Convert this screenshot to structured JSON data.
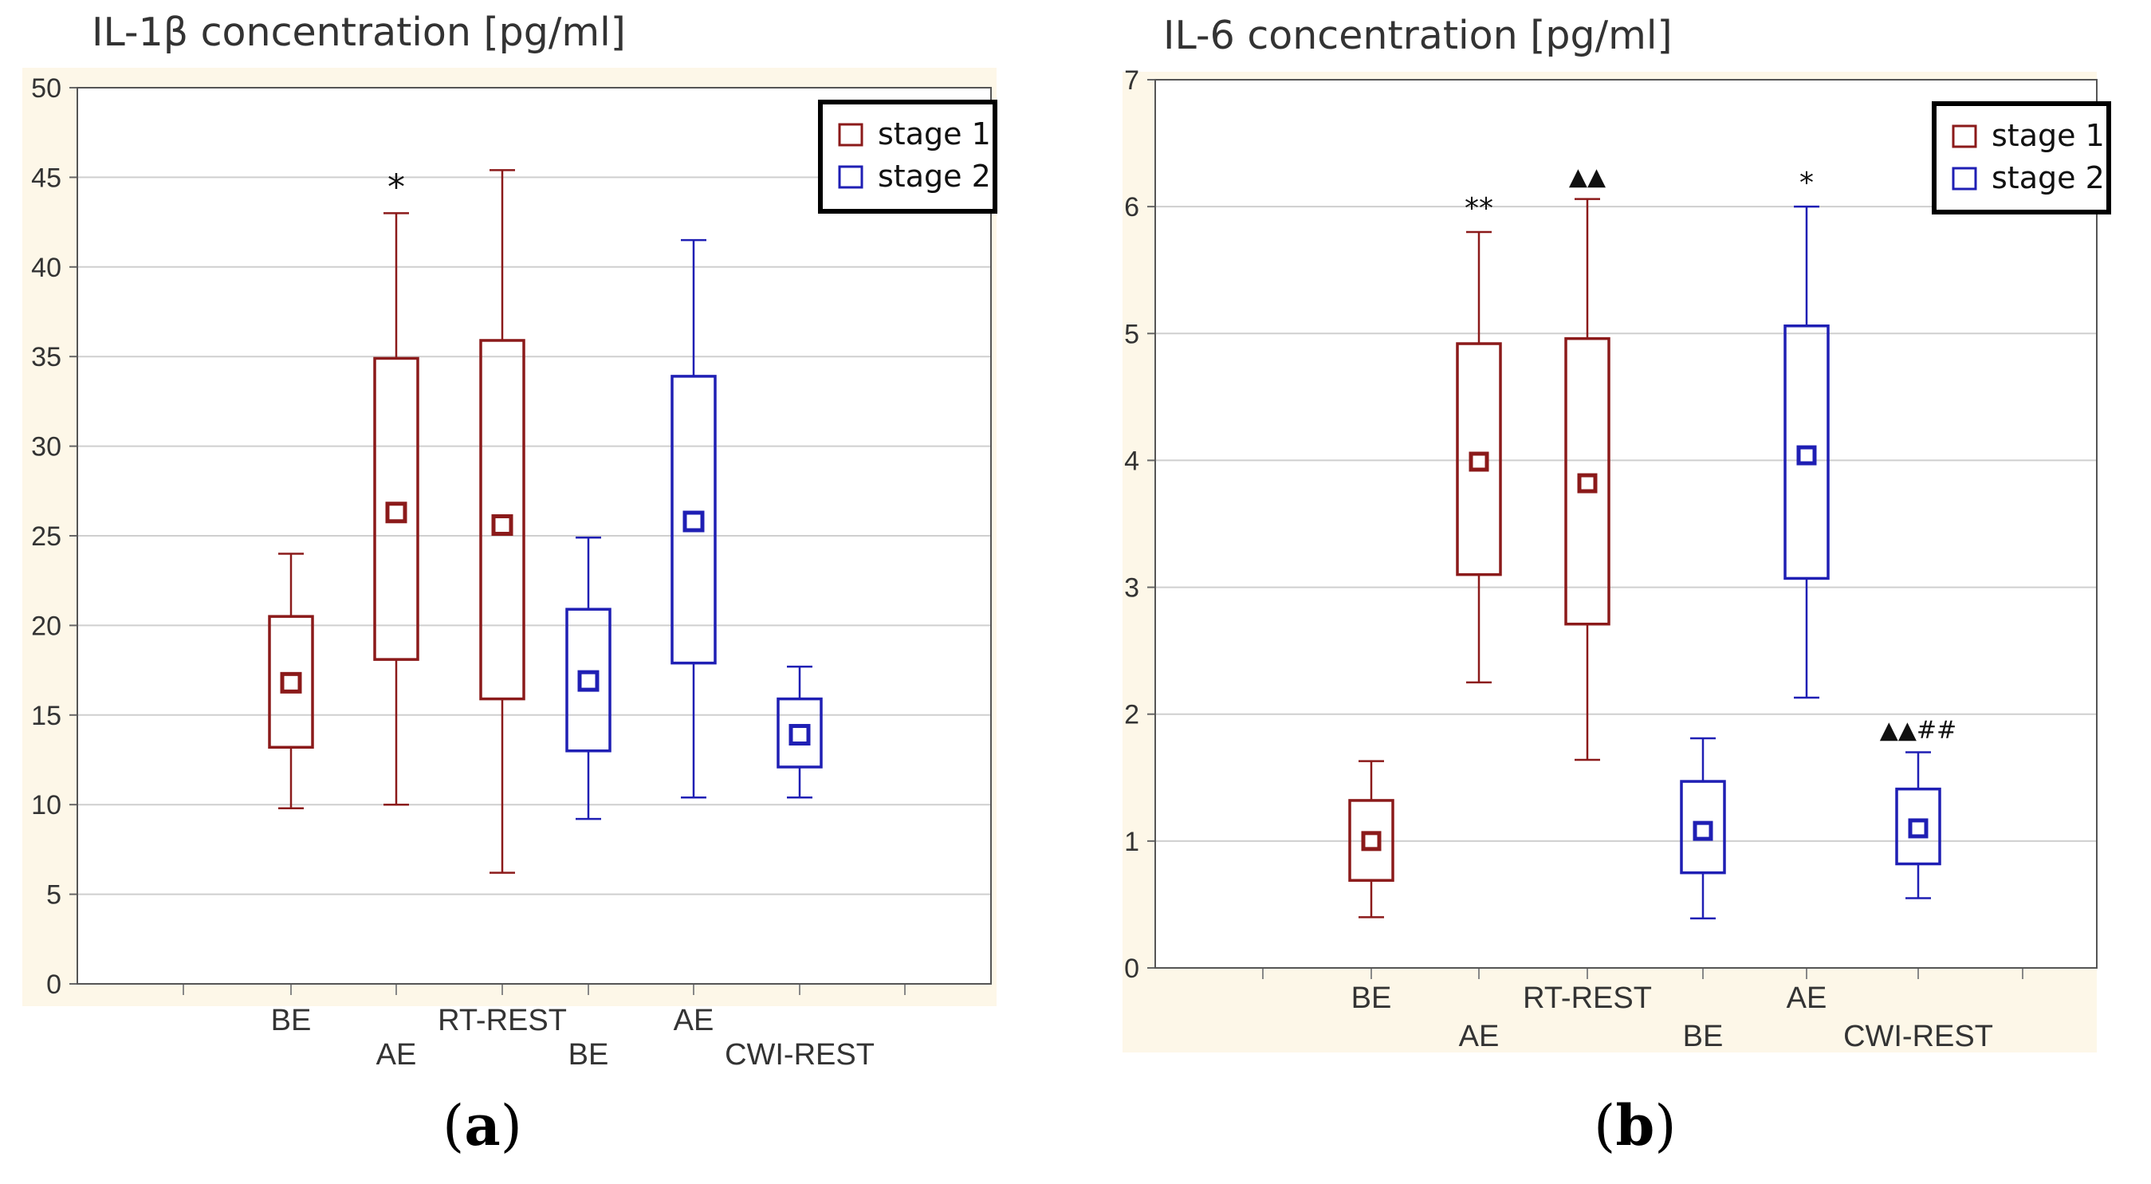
{
  "colors": {
    "stage1": "#8b1a1a",
    "stage2": "#1f1fb4",
    "background": "#fdf7e8",
    "grid": "#cfcfcf"
  },
  "chart_data": [
    {
      "type": "box",
      "panel_label": "a",
      "title": "IL-1β concentration [pg/ml]",
      "ylim": [
        0,
        50
      ],
      "yticks": [
        0,
        5,
        10,
        15,
        20,
        25,
        30,
        35,
        40,
        45,
        50
      ],
      "ytick_labels": [
        "0",
        "5",
        "10",
        "15",
        "20",
        "25",
        "30",
        "35",
        "40",
        "45",
        "50"
      ],
      "categories": [
        "BE",
        "AE",
        "RT-REST",
        "BE",
        "AE",
        "CWI-REST"
      ],
      "legend": [
        {
          "name": "stage 1",
          "color": "#8b1a1a"
        },
        {
          "name": "stage 2",
          "color": "#1f1fb4"
        }
      ],
      "series": [
        {
          "label": "BE",
          "stage": 1,
          "mean": 16.8,
          "q1": 13.2,
          "q3": 20.5,
          "min": 9.8,
          "max": 24.0,
          "annotation": ""
        },
        {
          "label": "AE",
          "stage": 1,
          "mean": 26.3,
          "q1": 18.1,
          "q3": 34.9,
          "min": 10.0,
          "max": 43.0,
          "annotation": "*"
        },
        {
          "label": "RT-REST",
          "stage": 1,
          "mean": 25.6,
          "q1": 15.9,
          "q3": 35.9,
          "min": 6.2,
          "max": 45.4,
          "annotation": ""
        },
        {
          "label": "BE",
          "stage": 2,
          "mean": 16.9,
          "q1": 13.0,
          "q3": 20.9,
          "min": 9.2,
          "max": 24.9,
          "annotation": ""
        },
        {
          "label": "AE",
          "stage": 2,
          "mean": 25.8,
          "q1": 17.9,
          "q3": 33.9,
          "min": 10.4,
          "max": 41.5,
          "annotation": ""
        },
        {
          "label": "CWI-REST",
          "stage": 2,
          "mean": 13.9,
          "q1": 12.1,
          "q3": 15.9,
          "min": 10.4,
          "max": 17.7,
          "annotation": ""
        }
      ]
    },
    {
      "type": "box",
      "panel_label": "b",
      "title": "IL-6 concentration [pg/ml]",
      "ylim": [
        0,
        7
      ],
      "yticks": [
        0,
        1,
        2,
        3,
        4,
        5,
        6,
        7
      ],
      "ytick_labels": [
        "0",
        "1",
        "2",
        "3",
        "4",
        "5",
        "6",
        "7"
      ],
      "categories": [
        "BE",
        "AE",
        "RT-REST",
        "BE",
        "AE",
        "CWI-REST"
      ],
      "legend": [
        {
          "name": "stage 1",
          "color": "#8b1a1a"
        },
        {
          "name": "stage 2",
          "color": "#1f1fb4"
        }
      ],
      "series": [
        {
          "label": "BE",
          "stage": 1,
          "mean": 1.0,
          "q1": 0.69,
          "q3": 1.32,
          "min": 0.4,
          "max": 1.63,
          "annotation": ""
        },
        {
          "label": "AE",
          "stage": 1,
          "mean": 3.99,
          "q1": 3.1,
          "q3": 4.92,
          "min": 2.25,
          "max": 5.8,
          "annotation": "**"
        },
        {
          "label": "RT-REST",
          "stage": 1,
          "mean": 3.82,
          "q1": 2.71,
          "q3": 4.96,
          "min": 1.64,
          "max": 6.06,
          "annotation": "▲▲"
        },
        {
          "label": "BE",
          "stage": 2,
          "mean": 1.08,
          "q1": 0.75,
          "q3": 1.47,
          "min": 0.39,
          "max": 1.81,
          "annotation": ""
        },
        {
          "label": "AE",
          "stage": 2,
          "mean": 4.04,
          "q1": 3.07,
          "q3": 5.06,
          "min": 2.13,
          "max": 6.0,
          "annotation": "*"
        },
        {
          "label": "CWI-REST",
          "stage": 2,
          "mean": 1.1,
          "q1": 0.82,
          "q3": 1.41,
          "min": 0.55,
          "max": 1.7,
          "annotation": "▲▲##"
        }
      ]
    }
  ]
}
